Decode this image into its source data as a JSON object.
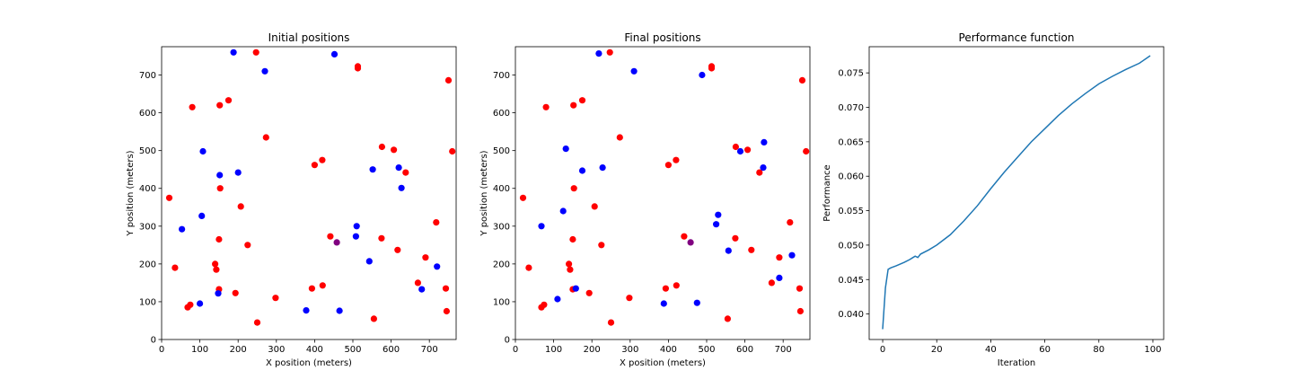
{
  "chart_data": [
    {
      "type": "scatter",
      "title": "Initial positions",
      "xlabel": "X position (meters)",
      "ylabel": "Y position (meters)",
      "xlim": [
        0,
        770
      ],
      "ylim": [
        0,
        775
      ],
      "xticks": [
        0,
        100,
        200,
        300,
        400,
        500,
        600,
        700
      ],
      "yticks": [
        0,
        100,
        200,
        300,
        400,
        500,
        600,
        700
      ],
      "grid": false,
      "colors": {
        "red": "#ff0000",
        "blue": "#0000ff",
        "purple": "#800080"
      },
      "series": [
        {
          "color": "red",
          "points": [
            [
              20,
              375
            ],
            [
              35,
              190
            ],
            [
              68,
              85
            ],
            [
              75,
              92
            ],
            [
              80,
              615
            ],
            [
              140,
              200
            ],
            [
              143,
              185
            ],
            [
              150,
              133
            ],
            [
              150,
              265
            ],
            [
              152,
              620
            ],
            [
              153,
              400
            ],
            [
              175,
              633
            ],
            [
              193,
              123
            ],
            [
              207,
              352
            ],
            [
              225,
              250
            ],
            [
              247,
              760
            ],
            [
              250,
              45
            ],
            [
              273,
              535
            ],
            [
              298,
              110
            ],
            [
              393,
              135
            ],
            [
              400,
              462
            ],
            [
              420,
              475
            ],
            [
              421,
              143
            ],
            [
              441,
              273
            ],
            [
              513,
              718
            ],
            [
              513,
              723
            ],
            [
              555,
              55
            ],
            [
              575,
              268
            ],
            [
              576,
              510
            ],
            [
              607,
              502
            ],
            [
              617,
              237
            ],
            [
              638,
              442
            ],
            [
              670,
              150
            ],
            [
              690,
              217
            ],
            [
              718,
              310
            ],
            [
              743,
              135
            ],
            [
              745,
              75
            ],
            [
              750,
              686
            ],
            [
              760,
              498
            ]
          ]
        },
        {
          "color": "blue",
          "points": [
            [
              53,
              292
            ],
            [
              100,
              95
            ],
            [
              105,
              327
            ],
            [
              108,
              498
            ],
            [
              148,
              122
            ],
            [
              152,
              435
            ],
            [
              188,
              760
            ],
            [
              200,
              442
            ],
            [
              270,
              710
            ],
            [
              378,
              77
            ],
            [
              452,
              755
            ],
            [
              465,
              76
            ],
            [
              508,
              273
            ],
            [
              510,
              300
            ],
            [
              543,
              207
            ],
            [
              552,
              450
            ],
            [
              620,
              455
            ],
            [
              627,
              401
            ],
            [
              680,
              133
            ],
            [
              720,
              193
            ]
          ]
        },
        {
          "color": "purple",
          "points": [
            [
              458,
              257
            ]
          ]
        }
      ]
    },
    {
      "type": "scatter",
      "title": "Final positions",
      "xlabel": "X position (meters)",
      "ylabel": "Y position (meters)",
      "xlim": [
        0,
        770
      ],
      "ylim": [
        0,
        775
      ],
      "xticks": [
        0,
        100,
        200,
        300,
        400,
        500,
        600,
        700
      ],
      "yticks": [
        0,
        100,
        200,
        300,
        400,
        500,
        600,
        700
      ],
      "grid": false,
      "colors": {
        "red": "#ff0000",
        "blue": "#0000ff",
        "purple": "#800080"
      },
      "series": [
        {
          "color": "red",
          "points": [
            [
              20,
              375
            ],
            [
              35,
              190
            ],
            [
              68,
              85
            ],
            [
              75,
              92
            ],
            [
              80,
              615
            ],
            [
              140,
              200
            ],
            [
              143,
              185
            ],
            [
              150,
              133
            ],
            [
              150,
              265
            ],
            [
              152,
              620
            ],
            [
              153,
              400
            ],
            [
              175,
              633
            ],
            [
              193,
              123
            ],
            [
              207,
              352
            ],
            [
              225,
              250
            ],
            [
              247,
              760
            ],
            [
              250,
              45
            ],
            [
              273,
              535
            ],
            [
              298,
              110
            ],
            [
              393,
              135
            ],
            [
              400,
              462
            ],
            [
              420,
              475
            ],
            [
              421,
              143
            ],
            [
              441,
              273
            ],
            [
              513,
              718
            ],
            [
              513,
              723
            ],
            [
              555,
              55
            ],
            [
              575,
              268
            ],
            [
              576,
              510
            ],
            [
              607,
              502
            ],
            [
              617,
              237
            ],
            [
              638,
              442
            ],
            [
              670,
              150
            ],
            [
              690,
              217
            ],
            [
              718,
              310
            ],
            [
              743,
              135
            ],
            [
              745,
              75
            ],
            [
              750,
              686
            ],
            [
              760,
              498
            ]
          ]
        },
        {
          "color": "blue",
          "points": [
            [
              68,
              300
            ],
            [
              110,
              107
            ],
            [
              125,
              340
            ],
            [
              132,
              505
            ],
            [
              158,
              135
            ],
            [
              175,
              447
            ],
            [
              218,
              757
            ],
            [
              228,
              455
            ],
            [
              310,
              710
            ],
            [
              388,
              95
            ],
            [
              475,
              97
            ],
            [
              488,
              700
            ],
            [
              525,
              305
            ],
            [
              530,
              330
            ],
            [
              557,
              235
            ],
            [
              588,
              498
            ],
            [
              648,
              455
            ],
            [
              650,
              522
            ],
            [
              690,
              163
            ],
            [
              723,
              223
            ]
          ]
        },
        {
          "color": "purple",
          "points": [
            [
              458,
              257
            ]
          ]
        }
      ]
    },
    {
      "type": "line",
      "title": "Performance function",
      "xlabel": "Iteration",
      "ylabel": "Performance",
      "xlim": [
        -5,
        104
      ],
      "ylim": [
        0.0363,
        0.0788
      ],
      "xticks": [
        0,
        20,
        40,
        60,
        80,
        100
      ],
      "yticks": [
        0.04,
        0.045,
        0.05,
        0.055,
        0.06,
        0.065,
        0.07,
        0.075
      ],
      "ytick_labels": [
        "0.040",
        "0.045",
        "0.050",
        "0.055",
        "0.060",
        "0.065",
        "0.070",
        "0.075"
      ],
      "grid": false,
      "colors": {
        "line": "#1f77b4"
      },
      "series": [
        {
          "color": "line",
          "points": [
            [
              0,
              0.0378
            ],
            [
              1,
              0.0438
            ],
            [
              2,
              0.0465
            ],
            [
              3,
              0.0467
            ],
            [
              5,
              0.047
            ],
            [
              8,
              0.0475
            ],
            [
              10,
              0.0479
            ],
            [
              12,
              0.0484
            ],
            [
              13,
              0.0482
            ],
            [
              14,
              0.0487
            ],
            [
              17,
              0.0493
            ],
            [
              20,
              0.05
            ],
            [
              25,
              0.0515
            ],
            [
              30,
              0.0535
            ],
            [
              35,
              0.0557
            ],
            [
              40,
              0.0582
            ],
            [
              45,
              0.0606
            ],
            [
              50,
              0.0628
            ],
            [
              55,
              0.065
            ],
            [
              60,
              0.0669
            ],
            [
              65,
              0.0688
            ],
            [
              70,
              0.0705
            ],
            [
              75,
              0.072
            ],
            [
              80,
              0.0734
            ],
            [
              85,
              0.0745
            ],
            [
              90,
              0.0755
            ],
            [
              95,
              0.0764
            ],
            [
              99,
              0.0775
            ]
          ]
        }
      ]
    }
  ]
}
